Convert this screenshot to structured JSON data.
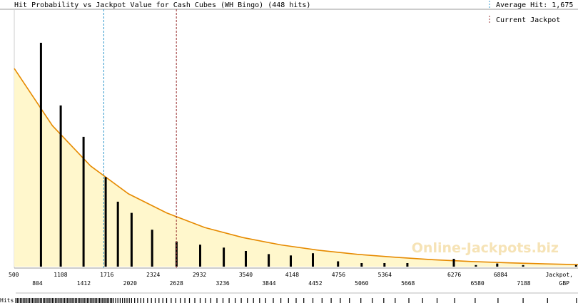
{
  "chart_data": {
    "type": "bar",
    "title": "Hit Probability vs Jackpot Value for Cash Cubes (WH Bingo) (448 hits)",
    "xlabel_line1": "Jackpot,",
    "xlabel_line2": "GBP",
    "hits_label": "Hits",
    "xlim": [
      500,
      7900
    ],
    "ylim": [
      0,
      1
    ],
    "x_ticks_top": [
      "500",
      "1108",
      "1716",
      "2324",
      "2932",
      "3540",
      "4148",
      "4756",
      "5364",
      "6276",
      "6884"
    ],
    "x_ticks_bottom": [
      "804",
      "1412",
      "2020",
      "2628",
      "3236",
      "3844",
      "4452",
      "5060",
      "5668",
      "6580",
      "7188"
    ],
    "x_ticks_top_values": [
      500,
      1108,
      1716,
      2324,
      2932,
      3540,
      4148,
      4756,
      5364,
      6276,
      6884
    ],
    "x_ticks_bottom_values": [
      804,
      1412,
      2020,
      2628,
      3236,
      3844,
      4452,
      5060,
      5668,
      6580,
      7188
    ],
    "bars": {
      "x": [
        850,
        1110,
        1410,
        1700,
        1860,
        2040,
        2310,
        2630,
        2940,
        3250,
        3540,
        3840,
        4130,
        4420,
        4750,
        5060,
        5360,
        5660,
        6270,
        6560,
        6840,
        7180,
        7875
      ],
      "values": [
        1.0,
        0.72,
        0.58,
        0.4,
        0.29,
        0.24,
        0.165,
        0.112,
        0.098,
        0.085,
        0.07,
        0.056,
        0.05,
        0.06,
        0.024,
        0.016,
        0.016,
        0.016,
        0.035,
        0.007,
        0.014,
        0.007,
        0.007
      ]
    },
    "trend_curve": {
      "description_points_x": [
        500,
        1000,
        1500,
        2000,
        2500,
        3000,
        3500,
        4000,
        4500,
        5000,
        5500,
        6000,
        6500,
        7000,
        7500,
        7900
      ],
      "description_points_y": [
        0.885,
        0.63,
        0.45,
        0.325,
        0.24,
        0.175,
        0.13,
        0.097,
        0.073,
        0.055,
        0.042,
        0.031,
        0.023,
        0.017,
        0.012,
        0.009
      ]
    },
    "average_hit": 1675,
    "current_jackpot": 2628,
    "legend": [
      {
        "label": "Average Hit: 1,675",
        "style": "dashed",
        "color": "#3399cc"
      },
      {
        "label": "Current Jackpot",
        "style": "dashed",
        "color": "#993333"
      }
    ],
    "watermark": "Online-Jackpots.biz",
    "hits_rug_x": [
      520,
      540,
      560,
      580,
      600,
      620,
      640,
      660,
      680,
      700,
      720,
      740,
      760,
      780,
      800,
      820,
      840,
      860,
      880,
      900,
      920,
      940,
      960,
      980,
      1000,
      1020,
      1040,
      1060,
      1080,
      1100,
      1120,
      1140,
      1160,
      1180,
      1200,
      1220,
      1240,
      1260,
      1280,
      1300,
      1320,
      1340,
      1360,
      1380,
      1400,
      1420,
      1440,
      1460,
      1480,
      1500,
      1520,
      1540,
      1560,
      1580,
      1600,
      1620,
      1640,
      1660,
      1680,
      1700,
      1720,
      1740,
      1760,
      1780,
      1800,
      1830,
      1860,
      1890,
      1920,
      1950,
      1980,
      2010,
      2040,
      2080,
      2120,
      2160,
      2200,
      2250,
      2300,
      2350,
      2400,
      2450,
      2500,
      2560,
      2620,
      2680,
      2740,
      2800,
      2870,
      2940,
      3010,
      3080,
      3160,
      3240,
      3320,
      3400,
      3480,
      3560,
      3640,
      3720,
      3800,
      3900,
      4000,
      4100,
      4200,
      4300,
      4420,
      4540,
      4660,
      4780,
      4900,
      5050,
      5200,
      5350,
      5500,
      5680,
      5860,
      6050,
      6280,
      6550,
      6850,
      7180,
      7500,
      7880
    ]
  }
}
